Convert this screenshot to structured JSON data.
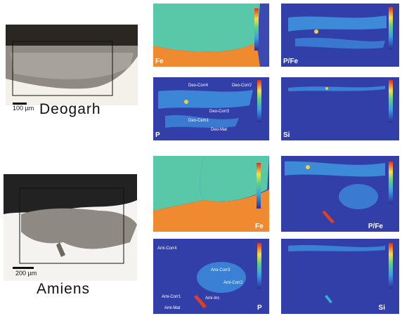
{
  "panels": [
    {
      "site": "Deogarh",
      "scale_bar": "100 µm",
      "maps": [
        {
          "label": "Fe"
        },
        {
          "label": "P/Fe"
        },
        {
          "label": "P",
          "annotations": [
            "Deo-Corr4",
            "Deo-Corr2",
            "Deo-Corr3",
            "Deo-Cem1",
            "Deo-Mat"
          ]
        },
        {
          "label": "Si"
        }
      ]
    },
    {
      "site": "Amiens",
      "scale_bar": "200 µm",
      "maps": [
        {
          "label": "Fe"
        },
        {
          "label": "P/Fe"
        },
        {
          "label": "P",
          "annotations": [
            "Ami-Corr4",
            "Ami-Corr3",
            "Ami-Corr2",
            "Ami-Corr1",
            "Ami-Inc",
            "Ami-Mat"
          ]
        },
        {
          "label": "Si"
        }
      ]
    }
  ]
}
